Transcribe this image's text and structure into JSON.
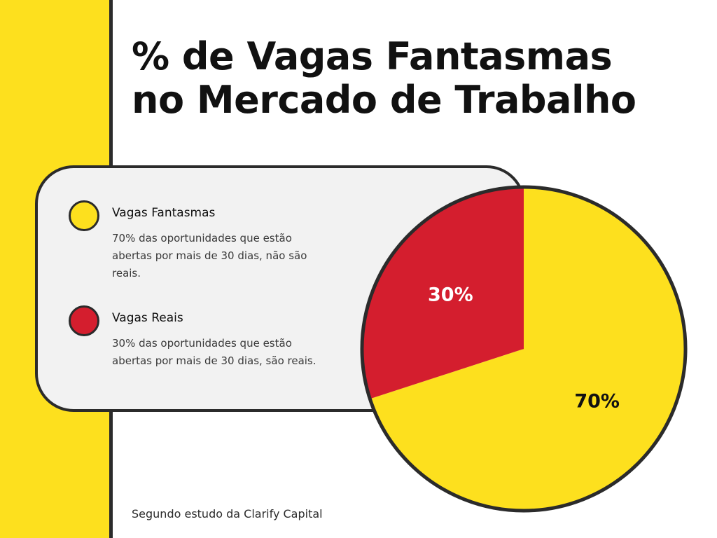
{
  "title": {
    "line1": "% de Vagas Fantasmas",
    "line2": "no Mercado de Trabalho"
  },
  "legend": [
    {
      "name": "Vagas Fantasmas",
      "description": "70% das oportunidades que estão abertas por mais de 30 dias, não são reais.",
      "color": "#fde01e"
    },
    {
      "name": "Vagas Reais",
      "description": "30% das oportunidades que estão abertas por mais de 30 dias, são reais.",
      "color": "#d41e2e"
    }
  ],
  "chart_data": {
    "type": "pie",
    "title": "% de Vagas Fantasmas no Mercado de Trabalho",
    "slices": [
      {
        "label": "Vagas Fantasmas",
        "value": 70,
        "display": "70%",
        "color": "#fde01e"
      },
      {
        "label": "Vagas Reais",
        "value": 30,
        "display": "30%",
        "color": "#d41e2e"
      }
    ],
    "start": "top (12 o'clock), clockwise"
  },
  "source": "Segundo estudo da Clarify Capital",
  "colors": {
    "accent_yellow": "#fde01e",
    "accent_red": "#d41e2e",
    "outline": "#2b2b2b",
    "panel_bg": "#f2f2f2"
  }
}
